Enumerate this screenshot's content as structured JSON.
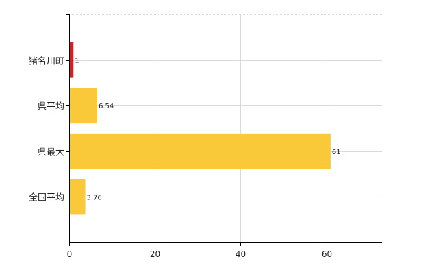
{
  "chart_data": {
    "type": "bar",
    "orientation": "horizontal",
    "categories": [
      "猪名川町",
      "県平均",
      "県最大",
      "全国平均"
    ],
    "values": [
      1,
      6.54,
      61,
      3.76
    ],
    "data_labels": [
      "1",
      "6.54",
      "61",
      "3.76"
    ],
    "bar_colors": [
      "#cc2222",
      "#f9c93a",
      "#f9c93a",
      "#f9c93a"
    ],
    "xlim": [
      0,
      73
    ],
    "x_ticks": [
      0,
      20,
      40,
      60
    ],
    "x_tick_labels": [
      "0",
      "20",
      "40",
      "60"
    ],
    "grid": true,
    "title": "",
    "xlabel": "",
    "ylabel": ""
  },
  "colors": {
    "highlight": "#cc2222",
    "bar": "#f9c93a",
    "grid": "#d9d9d9",
    "axis": "#000000"
  }
}
